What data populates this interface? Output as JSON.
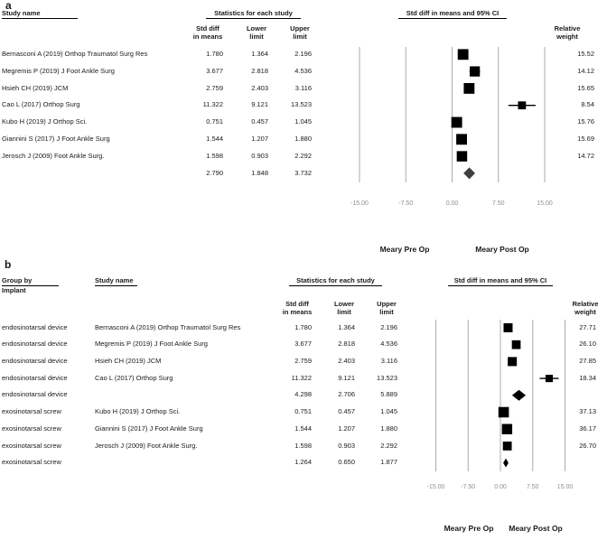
{
  "chart_data": [
    {
      "type": "forest",
      "panel_label": "a",
      "study_col_header": "Study name",
      "stats_header": "Statistics for each study",
      "effect_header": "Std diff in means and 95% CI",
      "col_headers": {
        "std": [
          "Std diff",
          "in means"
        ],
        "lower": [
          "Lower",
          "limit"
        ],
        "upper": [
          "Upper",
          "limit"
        ],
        "weight": [
          "Relative",
          "weight"
        ]
      },
      "xlim": [
        -15,
        15
      ],
      "x_ticks": [
        -15,
        -7.5,
        0,
        7.5,
        15
      ],
      "x_tick_labels": [
        "-15.00",
        "-7.50",
        "0.00",
        "7.50",
        "15.00"
      ],
      "footer_labels": [
        "Meary Pre Op",
        "Meary Post Op"
      ],
      "rows": [
        {
          "study": "Bernasconi A (2019) Orthop Traumatol Surg Res",
          "std_diff": "1.780",
          "lower": "1.364",
          "upper": "2.196",
          "weight": "15.52",
          "marker": "square"
        },
        {
          "study": "Megremis P (2019) J Foot Ankle Surg",
          "std_diff": "3.677",
          "lower": "2.818",
          "upper": "4.536",
          "weight": "14.12",
          "marker": "square"
        },
        {
          "study": "Hsieh CH (2019) JCM",
          "std_diff": "2.759",
          "lower": "2.403",
          "upper": "3.116",
          "weight": "15.65",
          "marker": "square"
        },
        {
          "study": "Cao L (2017) Orthop Surg",
          "std_diff": "11.322",
          "lower": "9.121",
          "upper": "13.523",
          "weight": "8.54",
          "marker": "square"
        },
        {
          "study": "Kubo H (2019) J Orthop Sci.",
          "std_diff": "0.751",
          "lower": "0.457",
          "upper": "1.045",
          "weight": "15.76",
          "marker": "square"
        },
        {
          "study": "Giannini S (2017) J Foot Ankle Surg",
          "std_diff": "1.544",
          "lower": "1.207",
          "upper": "1.880",
          "weight": "15.69",
          "marker": "square"
        },
        {
          "study": "Jerosch J (2009) Foot Ankle Surg.",
          "std_diff": "1.598",
          "lower": "0.903",
          "upper": "2.292",
          "weight": "14.72",
          "marker": "square"
        },
        {
          "study": "",
          "std_diff": "2.790",
          "lower": "1.848",
          "upper": "3.732",
          "weight": "",
          "marker": "diamond"
        }
      ]
    },
    {
      "type": "forest",
      "panel_label": "b",
      "group_col_header": "Group by",
      "group_col_subheader": "Implant",
      "study_col_header": "Study name",
      "stats_header": "Statistics for each study",
      "effect_header": "Std diff in means and 95% CI",
      "col_headers": {
        "std": [
          "Std diff",
          "in means"
        ],
        "lower": [
          "Lower",
          "limit"
        ],
        "upper": [
          "Upper",
          "limit"
        ],
        "weight": [
          "Relative",
          "weight"
        ]
      },
      "xlim": [
        -15,
        15
      ],
      "x_ticks": [
        -15,
        -7.5,
        0,
        7.5,
        15
      ],
      "x_tick_labels": [
        "-15.00",
        "-7.50",
        "0.00",
        "7.50",
        "15.00"
      ],
      "footer_labels": [
        "Meary Pre Op",
        "Meary Post Op"
      ],
      "rows": [
        {
          "group": "endosinotarsal device",
          "study": "Bernasconi A (2019) Orthop Traumatol Surg Res",
          "std_diff": "1.780",
          "lower": "1.364",
          "upper": "2.196",
          "weight": "27.71",
          "marker": "square"
        },
        {
          "group": "endosinotarsal device",
          "study": "Megremis P (2019) J Foot Ankle Surg",
          "std_diff": "3.677",
          "lower": "2.818",
          "upper": "4.536",
          "weight": "26.10",
          "marker": "square"
        },
        {
          "group": "endosinotarsal device",
          "study": "Hsieh CH (2019) JCM",
          "std_diff": "2.759",
          "lower": "2.403",
          "upper": "3.116",
          "weight": "27.85",
          "marker": "square"
        },
        {
          "group": "endosinotarsal device",
          "study": "Cao L (2017) Orthop Surg",
          "std_diff": "11.322",
          "lower": "9.121",
          "upper": "13.523",
          "weight": "18.34",
          "marker": "square"
        },
        {
          "group": "endosinotarsal device",
          "study": "",
          "std_diff": "4.298",
          "lower": "2.706",
          "upper": "5.889",
          "weight": "",
          "marker": "diamond"
        },
        {
          "group": "exosinotarsal screw",
          "study": "Kubo H (2019) J Orthop Sci.",
          "std_diff": "0.751",
          "lower": "0.457",
          "upper": "1.045",
          "weight": "37.13",
          "marker": "square"
        },
        {
          "group": "exosinotarsal screw",
          "study": "Giannini S (2017) J Foot Ankle Surg",
          "std_diff": "1.544",
          "lower": "1.207",
          "upper": "1.880",
          "weight": "36.17",
          "marker": "square"
        },
        {
          "group": "exosinotarsal screw",
          "study": "Jerosch J (2009) Foot Ankle Surg.",
          "std_diff": "1.598",
          "lower": "0.903",
          "upper": "2.292",
          "weight": "26.70",
          "marker": "square"
        },
        {
          "group": "exosinotarsal screw",
          "study": "",
          "std_diff": "1.264",
          "lower": "0.650",
          "upper": "1.877",
          "weight": "",
          "marker": "diamond"
        }
      ]
    }
  ]
}
